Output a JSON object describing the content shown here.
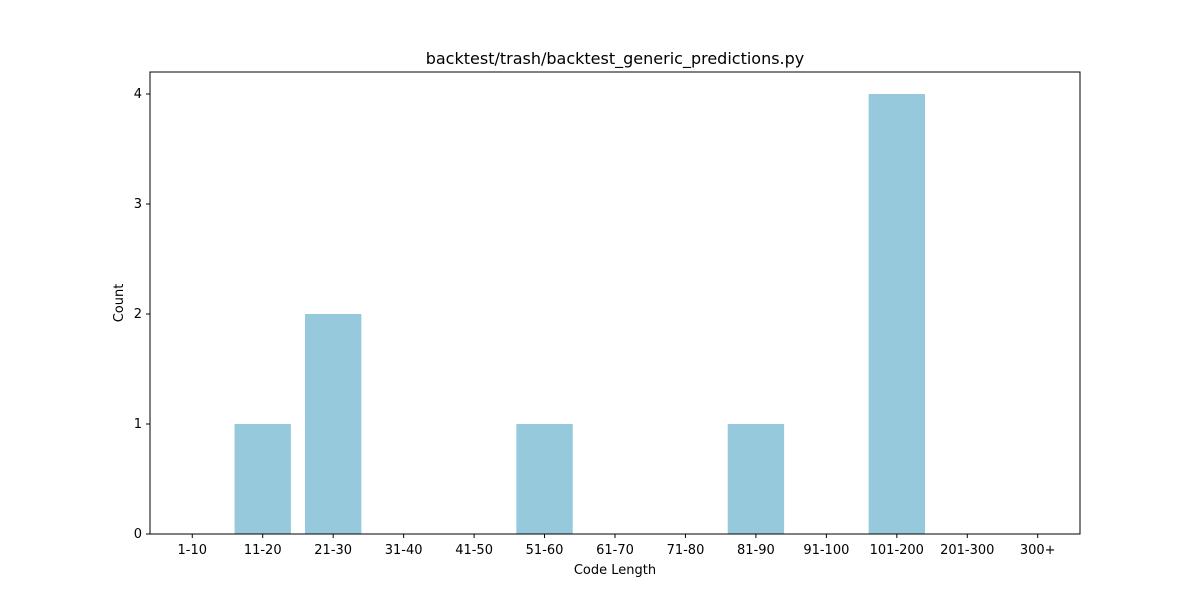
{
  "chart_data": {
    "type": "bar",
    "title": "backtest/trash/backtest_generic_predictions.py",
    "xlabel": "Code Length",
    "ylabel": "Count",
    "categories": [
      "1-10",
      "11-20",
      "21-30",
      "31-40",
      "41-50",
      "51-60",
      "61-70",
      "71-80",
      "81-90",
      "91-100",
      "101-200",
      "201-300",
      "300+"
    ],
    "values": [
      0,
      1,
      2,
      0,
      0,
      1,
      0,
      0,
      1,
      0,
      4,
      0,
      0
    ],
    "ylim": [
      0,
      4.2
    ],
    "yticks": [
      0,
      1,
      2,
      3,
      4
    ],
    "grid": false,
    "bar_color": "#96c9dc"
  }
}
